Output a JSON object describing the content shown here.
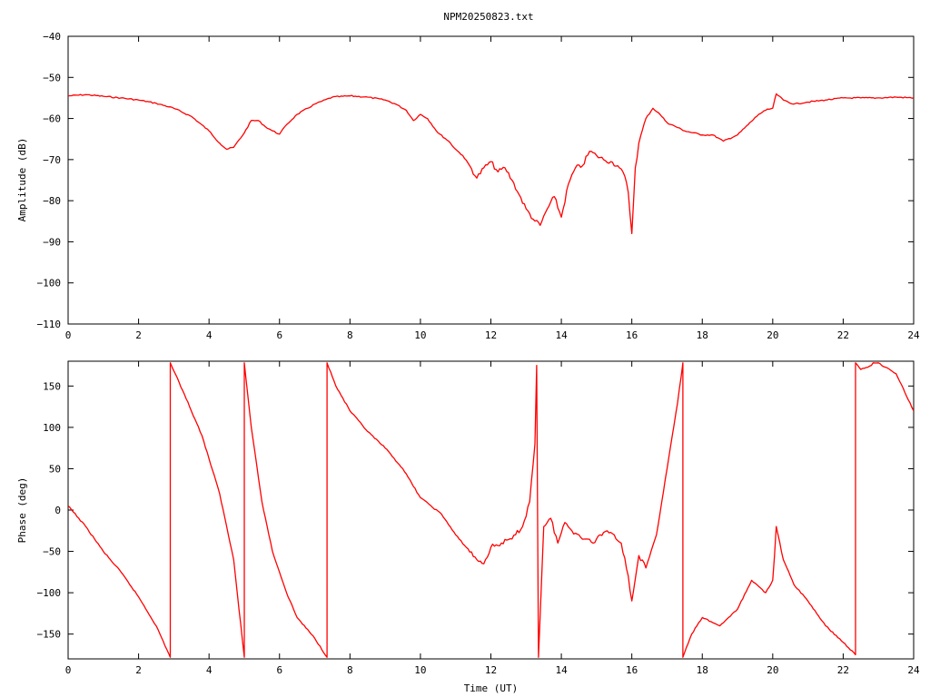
{
  "title": "NPM20250823.txt",
  "colors": {
    "series": "#ff0000",
    "axis": "#000000",
    "background": "#ffffff"
  },
  "chart_data": [
    {
      "type": "line",
      "xlabel": "",
      "ylabel": "Amplitude (dB)",
      "xlim": [
        0,
        24
      ],
      "ylim": [
        -110,
        -40
      ],
      "xticks": [
        0,
        2,
        4,
        6,
        8,
        10,
        12,
        14,
        16,
        18,
        20,
        22,
        24
      ],
      "yticks": [
        -110,
        -100,
        -90,
        -80,
        -70,
        -60,
        -50,
        -40
      ],
      "grid": false,
      "series": [
        {
          "x": [
            0,
            0.5,
            1,
            1.5,
            2,
            2.5,
            3,
            3.5,
            4,
            4.3,
            4.5,
            4.7,
            5,
            5.2,
            5.4,
            5.6,
            5.8,
            6,
            6.2,
            6.5,
            7,
            7.5,
            8,
            8.5,
            9,
            9.3,
            9.6,
            9.8,
            10,
            10.2,
            10.5,
            10.8,
            11,
            11.2,
            11.4,
            11.6,
            11.8,
            12,
            12.2,
            12.4,
            12.6,
            12.8,
            13,
            13.2,
            13.4,
            13.6,
            13.8,
            14,
            14.2,
            14.4,
            14.6,
            14.8,
            15,
            15.2,
            15.4,
            15.6,
            15.8,
            15.9,
            16,
            16.1,
            16.2,
            16.4,
            16.6,
            16.8,
            17,
            17.5,
            18,
            18.3,
            18.6,
            19,
            19.3,
            19.6,
            19.8,
            20,
            20.1,
            20.3,
            20.6,
            21,
            21.5,
            22,
            22.5,
            23,
            23.5,
            24
          ],
          "y": [
            -54.5,
            -54.2,
            -54.6,
            -55.0,
            -55.5,
            -56.3,
            -57.5,
            -59.5,
            -63.0,
            -66.0,
            -67.5,
            -67.0,
            -63.5,
            -60.5,
            -60.5,
            -62.0,
            -63.0,
            -63.8,
            -61.5,
            -59.0,
            -56.5,
            -54.8,
            -54.5,
            -54.8,
            -55.5,
            -56.5,
            -58.0,
            -60.5,
            -59.0,
            -60.0,
            -63.5,
            -65.5,
            -67.5,
            -69.0,
            -71.5,
            -74.5,
            -72.0,
            -70.5,
            -73.0,
            -72.0,
            -75.0,
            -78.5,
            -82.0,
            -84.5,
            -86.0,
            -82.0,
            -79.0,
            -84.0,
            -76.0,
            -72.0,
            -71.5,
            -68.0,
            -69.0,
            -70.0,
            -70.5,
            -71.5,
            -74.0,
            -78.0,
            -88.0,
            -72.0,
            -66.0,
            -60.0,
            -57.5,
            -59.0,
            -61.0,
            -63.0,
            -64.0,
            -64.0,
            -65.5,
            -64.0,
            -61.5,
            -59.0,
            -58.0,
            -57.5,
            -54.0,
            -55.5,
            -56.5,
            -56.0,
            -55.5,
            -55.0,
            -55.0,
            -55.0,
            -54.8,
            -55.0
          ]
        }
      ]
    },
    {
      "type": "line",
      "xlabel": "Time (UT)",
      "ylabel": "Phase (deg)",
      "xlim": [
        0,
        24
      ],
      "ylim": [
        -180,
        180
      ],
      "xticks": [
        0,
        2,
        4,
        6,
        8,
        10,
        12,
        14,
        16,
        18,
        20,
        22,
        24
      ],
      "yticks": [
        -150,
        -100,
        -50,
        0,
        50,
        100,
        150
      ],
      "grid": false,
      "series": [
        {
          "x": [
            0,
            0.5,
            1,
            1.5,
            2,
            2.5,
            2.9,
            2.9,
            3.3,
            3.8,
            4.3,
            4.7,
            5.0,
            5.0,
            5.2,
            5.5,
            5.8,
            6.2,
            6.5,
            7.0,
            7.35,
            7.35,
            7.6,
            8,
            8.5,
            9,
            9.5,
            10,
            10.3,
            10.6,
            11,
            11.3,
            11.6,
            11.8,
            12,
            12.3,
            12.6,
            12.9,
            13.1,
            13.25,
            13.3,
            13.35,
            13.35,
            13.5,
            13.7,
            13.9,
            14.1,
            14.3,
            14.5,
            14.7,
            14.9,
            15.1,
            15.3,
            15.5,
            15.7,
            15.9,
            16.0,
            16.2,
            16.4,
            16.7,
            17.0,
            17.3,
            17.45,
            17.45,
            17.7,
            18,
            18.5,
            19.0,
            19.4,
            19.8,
            20.0,
            20.05,
            20.1,
            20.3,
            20.6,
            21,
            21.5,
            22,
            22.35,
            22.35,
            22.5,
            22.8,
            22.85,
            22.85,
            23.0,
            23.5,
            24
          ],
          "y": [
            5,
            -20,
            -50,
            -75,
            -105,
            -140,
            -178,
            178,
            140,
            90,
            20,
            -60,
            -178,
            178,
            100,
            10,
            -50,
            -100,
            -130,
            -155,
            -178,
            178,
            150,
            120,
            95,
            75,
            50,
            15,
            5,
            -5,
            -30,
            -45,
            -60,
            -65,
            -45,
            -40,
            -35,
            -20,
            10,
            80,
            175,
            -178,
            -178,
            -20,
            -10,
            -40,
            -15,
            -25,
            -30,
            -35,
            -40,
            -30,
            -25,
            -30,
            -40,
            -80,
            -110,
            -55,
            -70,
            -30,
            50,
            130,
            178,
            -178,
            -150,
            -130,
            -140,
            -120,
            -85,
            -100,
            -85,
            -55,
            -20,
            -60,
            -90,
            -110,
            -140,
            -160,
            -175,
            178,
            170,
            175,
            178,
            178,
            178,
            165,
            120
          ]
        }
      ]
    }
  ]
}
